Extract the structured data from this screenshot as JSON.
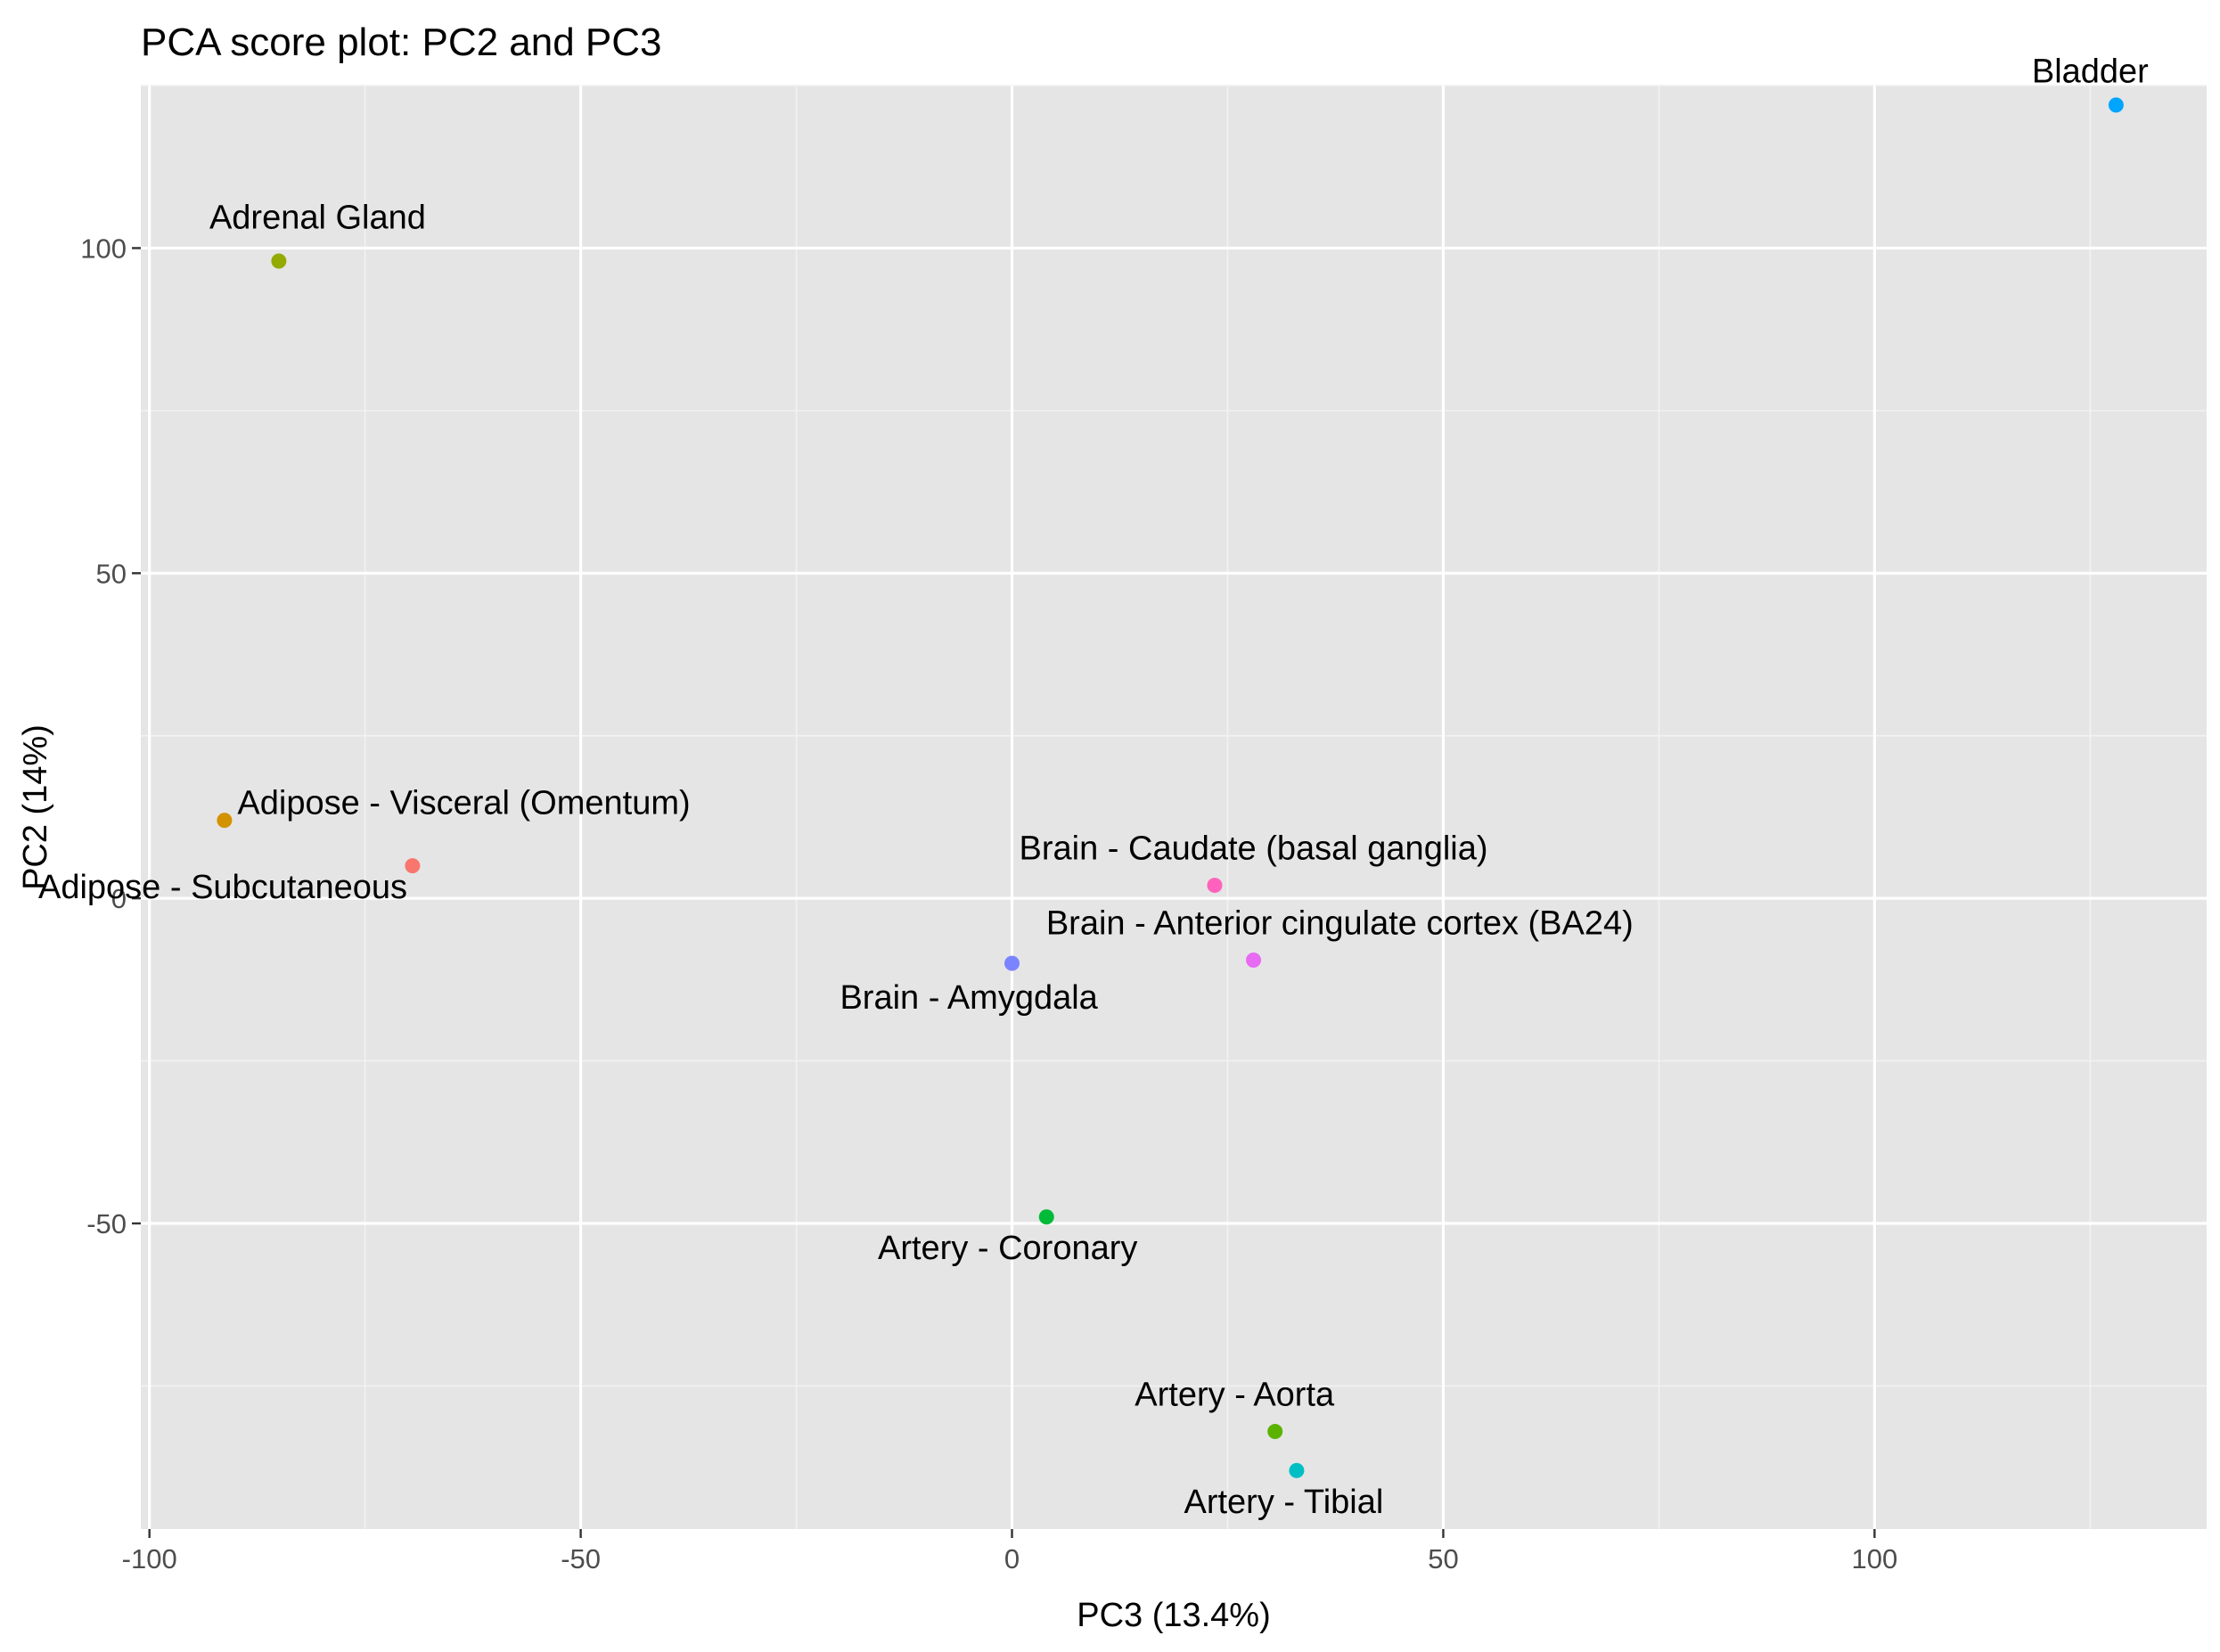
{
  "chart_data": {
    "type": "scatter",
    "title": "PCA score plot: PC2 and PC3",
    "xlabel": "PC3 (13.4%)",
    "ylabel": "PC2 (14%)",
    "xlim": [
      -101,
      138.5
    ],
    "ylim": [
      -97,
      125
    ],
    "xticks": [
      -100,
      -50,
      0,
      50,
      100
    ],
    "xtick_labels": [
      "-100",
      "-50",
      "0",
      "50",
      "100"
    ],
    "yticks": [
      -50,
      0,
      50,
      100
    ],
    "ytick_labels": [
      "-50",
      "0",
      "50",
      "100"
    ],
    "grid": true,
    "legend": "none",
    "points": [
      {
        "label": "Adipose - Subcutaneous",
        "x": -69.5,
        "y": 5.0,
        "color": "#F8766D",
        "label_anchor": "end",
        "label_dx": -0.6,
        "label_dy": -5.0
      },
      {
        "label": "Adipose - Visceral (Omentum)",
        "x": -91.3,
        "y": 12.0,
        "color": "#D39200",
        "label_anchor": "start",
        "label_dx": 1.5,
        "label_dy": 1.0
      },
      {
        "label": "Adrenal Gland",
        "x": -85.0,
        "y": 98.0,
        "color": "#93AA00",
        "label_anchor": "middle",
        "label_dx": 4.5,
        "label_dy": 5.0
      },
      {
        "label": "Artery - Aorta",
        "x": 30.5,
        "y": -82.0,
        "color": "#5BB300",
        "label_anchor": "middle",
        "label_dx": -4.7,
        "label_dy": 4.0
      },
      {
        "label": "Artery - Coronary",
        "x": 4.0,
        "y": -49.0,
        "color": "#00BA38",
        "label_anchor": "middle",
        "label_dx": -4.5,
        "label_dy": -6.5
      },
      {
        "label": "Artery - Tibial",
        "x": 33.0,
        "y": -88.0,
        "color": "#00BFC4",
        "label_anchor": "middle",
        "label_dx": -1.5,
        "label_dy": -6.5
      },
      {
        "label": "Bladder",
        "x": 128.0,
        "y": 122.0,
        "color": "#00A5FF",
        "label_anchor": "middle",
        "label_dx": -3.0,
        "label_dy": 3.5
      },
      {
        "label": "Brain - Amygdala",
        "x": 0.0,
        "y": -10.0,
        "color": "#7B84FF",
        "label_anchor": "middle",
        "label_dx": -5.0,
        "label_dy": -7.0
      },
      {
        "label": "Brain - Anterior cingulate cortex (BA24)",
        "x": 28.0,
        "y": -9.5,
        "color": "#E76BF3",
        "label_anchor": "middle",
        "label_dx": 10.0,
        "label_dy": 4.0
      },
      {
        "label": "Brain - Caudate (basal ganglia)",
        "x": 23.5,
        "y": 2.0,
        "color": "#FF62BC",
        "label_anchor": "middle",
        "label_dx": 4.5,
        "label_dy": 4.0
      }
    ]
  }
}
